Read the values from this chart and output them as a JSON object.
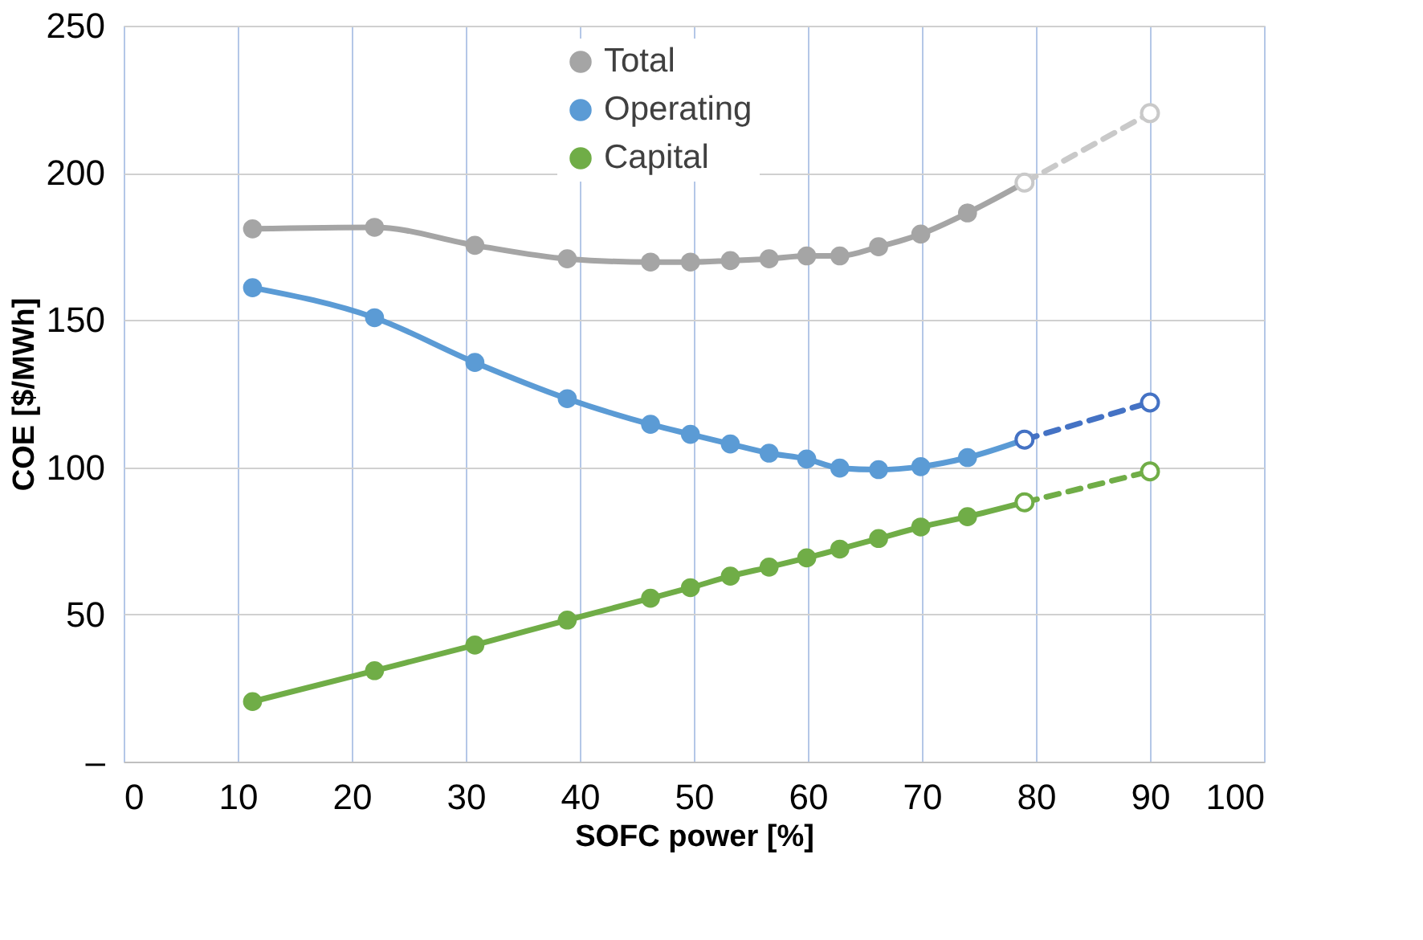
{
  "chart_data": {
    "type": "line",
    "xlabel": "SOFC power [%]",
    "ylabel": "COE  [$/MWh]",
    "xlim": [
      0,
      100
    ],
    "xticks": [
      0,
      10,
      20,
      30,
      40,
      50,
      60,
      70,
      80,
      90,
      100
    ],
    "ylim": [
      0,
      250
    ],
    "yticks": [
      {
        "value": 0,
        "label": "–"
      },
      50,
      100,
      150,
      200,
      250
    ],
    "grid": true,
    "legend": "top",
    "marker": "circle",
    "series": [
      {
        "name": "Total",
        "color": "#a5a5a5",
        "line_style": "solid",
        "x": [
          11.3,
          22.0,
          30.8,
          38.9,
          46.2,
          49.7,
          53.2,
          56.6,
          59.9,
          62.8,
          66.2,
          69.9,
          74.0,
          79.0
        ],
        "values": [
          181,
          181.5,
          175.4,
          170.8,
          169.7,
          169.7,
          170.2,
          170.8,
          171.8,
          171.8,
          174.9,
          179.2,
          186.4,
          196.7
        ]
      },
      {
        "name": "Operating",
        "color": "#5b9bd5",
        "line_style": "solid",
        "x": [
          11.3,
          22.0,
          30.8,
          38.9,
          46.2,
          49.7,
          53.2,
          56.6,
          59.9,
          62.8,
          66.2,
          69.9,
          74.0,
          79.0
        ],
        "values": [
          161.0,
          150.8,
          135.6,
          123.3,
          114.6,
          111.2,
          107.9,
          104.8,
          102.8,
          99.7,
          99.2,
          100.2,
          103.3,
          109.4
        ]
      },
      {
        "name": "Capital",
        "color": "#70ad47",
        "line_style": "solid",
        "x": [
          11.3,
          22.0,
          30.8,
          38.9,
          46.2,
          49.7,
          53.2,
          56.6,
          59.9,
          62.8,
          66.2,
          69.9,
          74.0,
          79.0
        ],
        "values": [
          20.4,
          30.9,
          39.6,
          48.1,
          55.5,
          59.1,
          63.0,
          66.1,
          69.2,
          72.2,
          75.8,
          79.7,
          83.2,
          88.1
        ]
      },
      {
        "color": "#c9c9c9",
        "line_style": "dashed",
        "x": [
          79.0,
          90
        ],
        "values": [
          196.7,
          220.3
        ]
      },
      {
        "color": "#4472c4",
        "line_style": "dashed",
        "x": [
          79.0,
          90
        ],
        "values": [
          109.4,
          122.0
        ]
      },
      {
        "color": "#70ad47",
        "line_style": "dashed",
        "x": [
          79.0,
          90
        ],
        "values": [
          88.1,
          98.6
        ]
      }
    ]
  }
}
